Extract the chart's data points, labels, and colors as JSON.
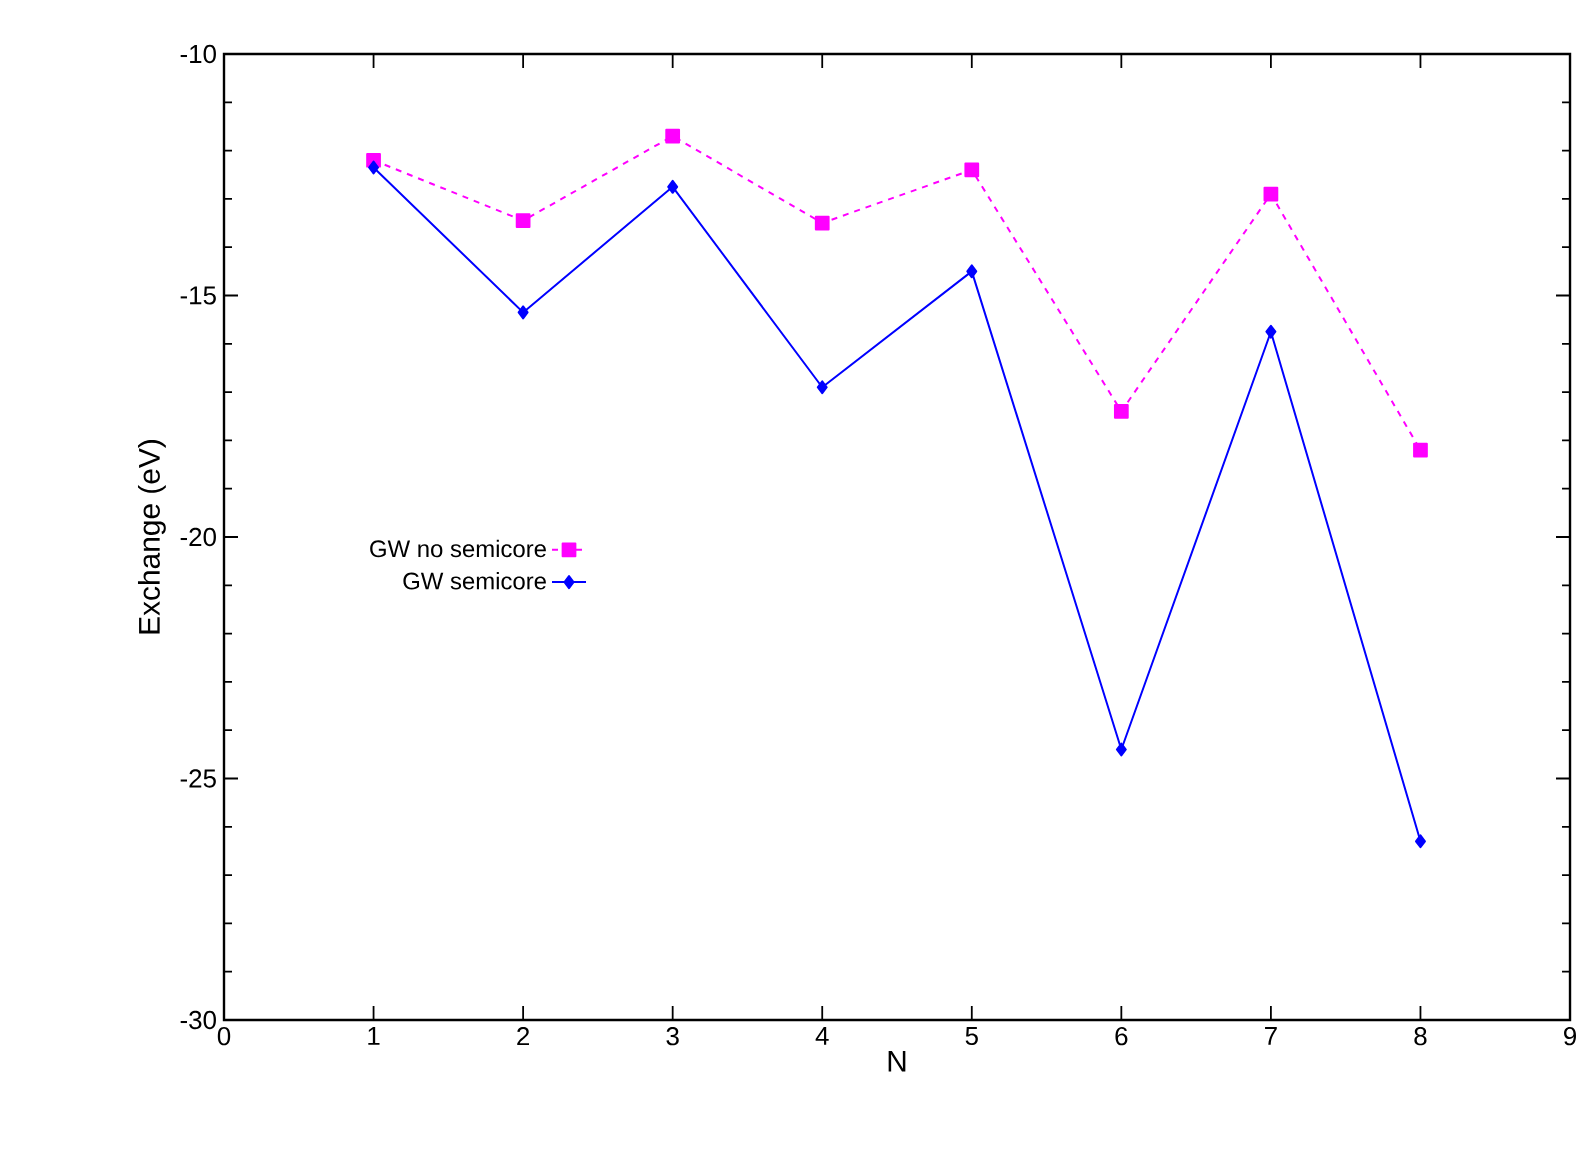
{
  "chart_data": {
    "type": "line",
    "xlabel": "N",
    "ylabel": "Exchange (eV)",
    "x": [
      1,
      2,
      3,
      4,
      5,
      6,
      7,
      8
    ],
    "xlim": [
      0,
      9
    ],
    "xticks": [
      0,
      1,
      2,
      3,
      4,
      5,
      6,
      7,
      8,
      9
    ],
    "ylim": [
      -30,
      -10
    ],
    "yticks": [
      -30,
      {
        "value": -29,
        "label": null
      },
      {
        "value": -28,
        "label": null
      },
      {
        "value": -27,
        "label": null
      },
      {
        "value": -26,
        "label": null
      },
      -25,
      {
        "value": -24,
        "label": null
      },
      {
        "value": -23,
        "label": null
      },
      {
        "value": -22,
        "label": null
      },
      {
        "value": -21,
        "label": null
      },
      -20,
      {
        "value": -19,
        "label": null
      },
      {
        "value": -18,
        "label": null
      },
      {
        "value": -17,
        "label": null
      },
      {
        "value": -16,
        "label": null
      },
      -15,
      {
        "value": -14,
        "label": null
      },
      {
        "value": -13,
        "label": null
      },
      {
        "value": -12,
        "label": null
      },
      {
        "value": -11,
        "label": null
      },
      -10
    ],
    "grid": false,
    "legend": "left",
    "series": [
      {
        "name": "GW no semicore",
        "color": "#ff00ff",
        "marker": "square",
        "line_style": "dashed",
        "values": [
          -12.2,
          -13.45,
          -11.7,
          -13.5,
          -12.4,
          -17.4,
          -12.9,
          -18.2
        ]
      },
      {
        "name": "GW semicore",
        "color": "#0000ff",
        "marker": "diamond",
        "line_style": "solid",
        "values": [
          -12.35,
          -15.35,
          -12.75,
          -16.9,
          -14.5,
          -24.4,
          -15.75,
          -26.3
        ]
      }
    ]
  }
}
